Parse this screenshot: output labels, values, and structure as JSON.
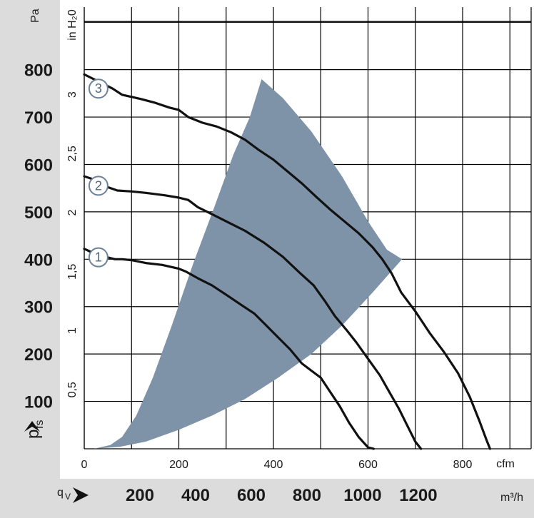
{
  "chart_data": {
    "type": "line",
    "title": "",
    "xlabel": "cfm",
    "ylabel": "Pa",
    "xlim": [
      0,
      880
    ],
    "ylim": [
      0,
      930
    ],
    "grid": true,
    "colors": {
      "panel": "#dcdcdc",
      "operating_range": "#7e93a8",
      "curve": "#111111",
      "marker_stroke": "#6b8299"
    },
    "axes": {
      "left_unit": "Pa",
      "left_ticks": [
        "100",
        "200",
        "300",
        "400",
        "500",
        "600",
        "700",
        "800"
      ],
      "left_ticks_values": [
        100,
        200,
        300,
        400,
        500,
        600,
        700,
        800
      ],
      "left_symbol": "p",
      "left_symbol_sub": "fs",
      "inner_unit": "in H₂0",
      "inner_ticks": [
        "0,5",
        "1",
        "1,5",
        "2",
        "2,5",
        "3"
      ],
      "inner_ticks_values": [
        0.5,
        1,
        1.5,
        2,
        2.5,
        3
      ],
      "x_unit": "cfm",
      "x_ticks": [
        "0",
        "200",
        "400",
        "600",
        "800"
      ],
      "x_ticks_values": [
        0,
        200,
        400,
        600,
        800
      ],
      "bottom_symbol": "q",
      "bottom_symbol_sub": "V",
      "bottom_ticks": [
        "200",
        "400",
        "600",
        "800",
        "1000",
        "1200"
      ],
      "bottom_ticks_values": [
        200,
        400,
        600,
        800,
        1000,
        1200
      ],
      "bottom_unit": "m³/h"
    },
    "operating_range": {
      "upper": [
        [
          20,
          0
        ],
        [
          55,
          8
        ],
        [
          80,
          25
        ],
        [
          110,
          70
        ],
        [
          145,
          150
        ],
        [
          185,
          260
        ],
        [
          230,
          390
        ],
        [
          275,
          510
        ],
        [
          315,
          620
        ],
        [
          350,
          700
        ],
        [
          375,
          780
        ]
      ],
      "right": [
        [
          375,
          780
        ],
        [
          420,
          740
        ],
        [
          480,
          670
        ],
        [
          545,
          575
        ],
        [
          600,
          480
        ],
        [
          640,
          420
        ],
        [
          672,
          400
        ]
      ],
      "lower": [
        [
          672,
          400
        ],
        [
          610,
          330
        ],
        [
          545,
          260
        ],
        [
          480,
          200
        ],
        [
          410,
          150
        ],
        [
          340,
          105
        ],
        [
          270,
          70
        ],
        [
          200,
          40
        ],
        [
          130,
          15
        ],
        [
          75,
          4
        ],
        [
          20,
          0
        ]
      ]
    },
    "series": [
      {
        "name": "1",
        "x": [
          0,
          15,
          30,
          45,
          65,
          80,
          100,
          130,
          165,
          200,
          215,
          240,
          270,
          300,
          330,
          360,
          385,
          410,
          435,
          460,
          480,
          500,
          520,
          540,
          560,
          580,
          600,
          612
        ],
        "y": [
          422,
          415,
          410,
          405,
          400,
          400,
          398,
          392,
          388,
          380,
          374,
          360,
          345,
          325,
          305,
          285,
          260,
          235,
          210,
          180,
          165,
          150,
          120,
          90,
          55,
          25,
          3,
          0
        ]
      },
      {
        "name": "2",
        "x": [
          0,
          15,
          30,
          50,
          70,
          100,
          130,
          170,
          200,
          220,
          240,
          270,
          300,
          340,
          380,
          420,
          455,
          485,
          510,
          530,
          555,
          575,
          600,
          625,
          645,
          665,
          685,
          700,
          712
        ],
        "y": [
          575,
          570,
          562,
          552,
          545,
          543,
          540,
          535,
          530,
          525,
          510,
          495,
          480,
          460,
          435,
          405,
          372,
          345,
          310,
          280,
          250,
          225,
          190,
          155,
          120,
          85,
          45,
          15,
          0
        ]
      },
      {
        "name": "3",
        "x": [
          0,
          20,
          40,
          60,
          80,
          120,
          150,
          180,
          200,
          220,
          250,
          280,
          310,
          340,
          370,
          400,
          430,
          460,
          490,
          520,
          550,
          580,
          610,
          630,
          650,
          670,
          700,
          730,
          760,
          790,
          815,
          835,
          850,
          858
        ],
        "y": [
          790,
          780,
          770,
          760,
          747,
          738,
          730,
          720,
          715,
          700,
          688,
          680,
          668,
          652,
          630,
          610,
          585,
          560,
          532,
          505,
          480,
          455,
          425,
          400,
          370,
          330,
          290,
          245,
          205,
          160,
          110,
          60,
          20,
          0
        ]
      }
    ],
    "markers": [
      {
        "label": "1",
        "x": 30,
        "y": 404
      },
      {
        "label": "2",
        "x": 30,
        "y": 555
      },
      {
        "label": "3",
        "x": 30,
        "y": 760
      }
    ]
  }
}
